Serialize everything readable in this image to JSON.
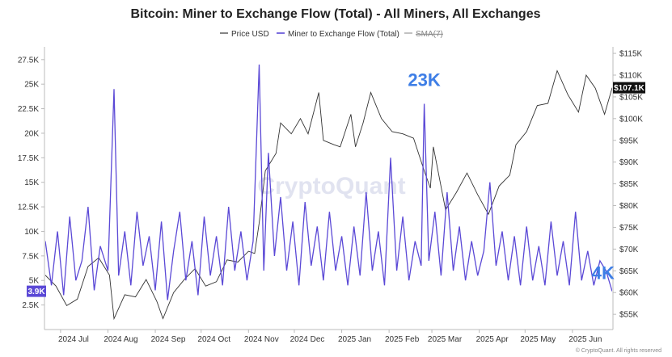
{
  "chart_data": {
    "type": "line",
    "title": "Bitcoin: Miner to Exchange Flow (Total) - All Miners, All Exchanges",
    "legend": {
      "placement": "top-center",
      "entries": [
        "Price USD",
        "Miner to Exchange Flow (Total)",
        "SMA(7)"
      ]
    },
    "x_tick_labels": [
      "2024 Jul",
      "2024 Aug",
      "2024 Sep",
      "2024 Oct",
      "2024 Nov",
      "2024 Dec",
      "2025 Jan",
      "2025 Feb",
      "2025 Mar",
      "2025 Apr",
      "2025 May",
      "2025 Jun"
    ],
    "x_range": [
      "2024-06-21",
      "2025-06-27"
    ],
    "y_left": {
      "ticks": [
        "2.5K",
        "5K",
        "7.5K",
        "10K",
        "12.5K",
        "15K",
        "17.5K",
        "20K",
        "22.5K",
        "25K",
        "27.5K"
      ],
      "tick_values": [
        2500,
        5000,
        7500,
        10000,
        12500,
        15000,
        17500,
        20000,
        22500,
        25000,
        27500
      ],
      "range": [
        0,
        28800
      ]
    },
    "y_right": {
      "ticks": [
        "$55K",
        "$60K",
        "$65K",
        "$70K",
        "$75K",
        "$80K",
        "$85K",
        "$90K",
        "$95K",
        "$100K",
        "$105K",
        "$110K",
        "$115K"
      ],
      "tick_values": [
        55000,
        60000,
        65000,
        70000,
        75000,
        80000,
        85000,
        90000,
        95000,
        100000,
        105000,
        110000,
        115000
      ],
      "range": [
        51500,
        116500
      ]
    },
    "current_value_badges": {
      "flow": "3.9K",
      "price": "$107.1K"
    },
    "annotations": [
      {
        "text": "23K",
        "date": "2025-02-24",
        "value": 23000
      },
      {
        "text": "4K",
        "date": "2025-06-20",
        "value": 4000
      }
    ],
    "series": [
      {
        "name": "Price USD",
        "color": "#333333",
        "points": [
          [
            "2024-06-21",
            64000
          ],
          [
            "2024-06-28",
            61500
          ],
          [
            "2024-07-05",
            57000
          ],
          [
            "2024-07-12",
            58500
          ],
          [
            "2024-07-19",
            66000
          ],
          [
            "2024-07-26",
            68000
          ],
          [
            "2024-08-02",
            64000
          ],
          [
            "2024-08-05",
            54000
          ],
          [
            "2024-08-12",
            59500
          ],
          [
            "2024-08-19",
            59000
          ],
          [
            "2024-08-26",
            63000
          ],
          [
            "2024-09-02",
            58000
          ],
          [
            "2024-09-06",
            54000
          ],
          [
            "2024-09-13",
            60000
          ],
          [
            "2024-09-20",
            63000
          ],
          [
            "2024-09-27",
            65500
          ],
          [
            "2024-10-04",
            61500
          ],
          [
            "2024-10-11",
            62500
          ],
          [
            "2024-10-18",
            67500
          ],
          [
            "2024-10-25",
            67000
          ],
          [
            "2024-11-01",
            69500
          ],
          [
            "2024-11-05",
            69000
          ],
          [
            "2024-11-08",
            76000
          ],
          [
            "2024-11-12",
            88000
          ],
          [
            "2024-11-19",
            92000
          ],
          [
            "2024-11-22",
            99000
          ],
          [
            "2024-11-29",
            96500
          ],
          [
            "2024-12-05",
            100000
          ],
          [
            "2024-12-10",
            96500
          ],
          [
            "2024-12-17",
            106000
          ],
          [
            "2024-12-20",
            95000
          ],
          [
            "2024-12-27",
            94000
          ],
          [
            "2024-12-31",
            93500
          ],
          [
            "2025-01-07",
            101000
          ],
          [
            "2025-01-10",
            93500
          ],
          [
            "2025-01-15",
            99000
          ],
          [
            "2025-01-20",
            106000
          ],
          [
            "2025-01-27",
            100000
          ],
          [
            "2025-02-03",
            97000
          ],
          [
            "2025-02-10",
            96500
          ],
          [
            "2025-02-17",
            95500
          ],
          [
            "2025-02-24",
            88000
          ],
          [
            "2025-02-28",
            84000
          ],
          [
            "2025-03-02",
            93500
          ],
          [
            "2025-03-10",
            79000
          ],
          [
            "2025-03-17",
            83000
          ],
          [
            "2025-03-24",
            87500
          ],
          [
            "2025-03-31",
            82500
          ],
          [
            "2025-04-07",
            78000
          ],
          [
            "2025-04-14",
            84500
          ],
          [
            "2025-04-21",
            87000
          ],
          [
            "2025-04-25",
            94000
          ],
          [
            "2025-05-02",
            97000
          ],
          [
            "2025-05-09",
            103000
          ],
          [
            "2025-05-16",
            103500
          ],
          [
            "2025-05-22",
            111000
          ],
          [
            "2025-05-29",
            105500
          ],
          [
            "2025-06-05",
            101500
          ],
          [
            "2025-06-10",
            110000
          ],
          [
            "2025-06-16",
            107000
          ],
          [
            "2025-06-22",
            101000
          ],
          [
            "2025-06-27",
            107100
          ]
        ]
      },
      {
        "name": "Miner to Exchange Flow (Total)",
        "color": "#5b49d6",
        "points": [
          [
            "2024-06-21",
            9000
          ],
          [
            "2024-06-25",
            4500
          ],
          [
            "2024-06-29",
            10000
          ],
          [
            "2024-07-03",
            3500
          ],
          [
            "2024-07-07",
            11500
          ],
          [
            "2024-07-11",
            5000
          ],
          [
            "2024-07-15",
            7000
          ],
          [
            "2024-07-19",
            12500
          ],
          [
            "2024-07-23",
            4000
          ],
          [
            "2024-07-27",
            8500
          ],
          [
            "2024-08-01",
            6000
          ],
          [
            "2024-08-05",
            24500
          ],
          [
            "2024-08-08",
            5500
          ],
          [
            "2024-08-12",
            10000
          ],
          [
            "2024-08-16",
            4500
          ],
          [
            "2024-08-20",
            12000
          ],
          [
            "2024-08-24",
            6500
          ],
          [
            "2024-08-28",
            9500
          ],
          [
            "2024-09-01",
            4000
          ],
          [
            "2024-09-05",
            11000
          ],
          [
            "2024-09-09",
            3000
          ],
          [
            "2024-09-13",
            8000
          ],
          [
            "2024-09-17",
            12000
          ],
          [
            "2024-09-21",
            5000
          ],
          [
            "2024-09-25",
            9000
          ],
          [
            "2024-09-29",
            3500
          ],
          [
            "2024-10-03",
            11500
          ],
          [
            "2024-10-07",
            5500
          ],
          [
            "2024-10-11",
            9500
          ],
          [
            "2024-10-15",
            4500
          ],
          [
            "2024-10-19",
            12500
          ],
          [
            "2024-10-23",
            6000
          ],
          [
            "2024-10-27",
            10000
          ],
          [
            "2024-10-31",
            5000
          ],
          [
            "2024-11-04",
            9000
          ],
          [
            "2024-11-08",
            27000
          ],
          [
            "2024-11-11",
            6000
          ],
          [
            "2024-11-14",
            18000
          ],
          [
            "2024-11-18",
            7500
          ],
          [
            "2024-11-22",
            13500
          ],
          [
            "2024-11-26",
            6000
          ],
          [
            "2024-11-30",
            11000
          ],
          [
            "2024-12-04",
            4500
          ],
          [
            "2024-12-08",
            13000
          ],
          [
            "2024-12-12",
            6500
          ],
          [
            "2024-12-16",
            10500
          ],
          [
            "2024-12-20",
            5000
          ],
          [
            "2024-12-24",
            12000
          ],
          [
            "2024-12-28",
            6000
          ],
          [
            "2025-01-01",
            9500
          ],
          [
            "2025-01-05",
            4500
          ],
          [
            "2025-01-09",
            10500
          ],
          [
            "2025-01-13",
            5500
          ],
          [
            "2025-01-17",
            14000
          ],
          [
            "2025-01-21",
            6000
          ],
          [
            "2025-01-25",
            10000
          ],
          [
            "2025-01-29",
            4500
          ],
          [
            "2025-02-02",
            17500
          ],
          [
            "2025-02-06",
            6000
          ],
          [
            "2025-02-10",
            11500
          ],
          [
            "2025-02-14",
            5000
          ],
          [
            "2025-02-18",
            9000
          ],
          [
            "2025-02-22",
            6500
          ],
          [
            "2025-02-24",
            23000
          ],
          [
            "2025-02-27",
            7000
          ],
          [
            "2025-03-03",
            12000
          ],
          [
            "2025-03-07",
            5500
          ],
          [
            "2025-03-11",
            14000
          ],
          [
            "2025-03-15",
            6000
          ],
          [
            "2025-03-19",
            10500
          ],
          [
            "2025-03-23",
            5000
          ],
          [
            "2025-03-27",
            9000
          ],
          [
            "2025-03-31",
            5500
          ],
          [
            "2025-04-04",
            8000
          ],
          [
            "2025-04-08",
            15000
          ],
          [
            "2025-04-12",
            6500
          ],
          [
            "2025-04-16",
            10000
          ],
          [
            "2025-04-20",
            5000
          ],
          [
            "2025-04-24",
            9500
          ],
          [
            "2025-04-28",
            4500
          ],
          [
            "2025-05-02",
            10500
          ],
          [
            "2025-05-06",
            5000
          ],
          [
            "2025-05-10",
            8500
          ],
          [
            "2025-05-14",
            4500
          ],
          [
            "2025-05-18",
            11000
          ],
          [
            "2025-05-22",
            5500
          ],
          [
            "2025-05-26",
            9000
          ],
          [
            "2025-05-30",
            4500
          ],
          [
            "2025-06-03",
            12000
          ],
          [
            "2025-06-07",
            5000
          ],
          [
            "2025-06-11",
            8000
          ],
          [
            "2025-06-15",
            4500
          ],
          [
            "2025-06-19",
            7000
          ],
          [
            "2025-06-23",
            6000
          ],
          [
            "2025-06-27",
            3900
          ]
        ]
      }
    ]
  },
  "watermark": "CryptoQuant",
  "credit": "© CryptoQuant. All rights reserved",
  "colors": {
    "flow": "#5b49d6",
    "price": "#333333",
    "sma": "#9a9a9a",
    "annotation": "#3e7ee6",
    "badge_flow": "#5b49d6",
    "badge_price": "#111111"
  }
}
